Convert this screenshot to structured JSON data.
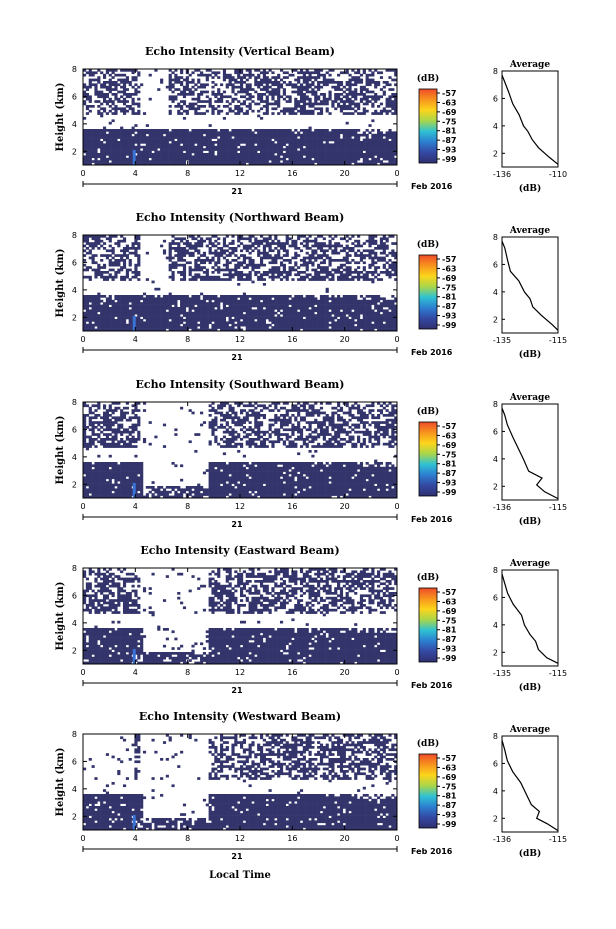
{
  "figure": {
    "x_axis_label": "Local Time",
    "date_label": "Feb 2016",
    "day_label": "21",
    "avg_title": "Average",
    "avg_xlabel": "(dB)",
    "colorbar_unit": "(dB)",
    "colorbar_ticks": [
      "-57",
      "-63",
      "-69",
      "-75",
      "-81",
      "-87",
      "-93",
      "-99"
    ],
    "colorbar_colors": [
      "#ef4b2a",
      "#f7941d",
      "#fcd51c",
      "#a9d64a",
      "#2fc2d3",
      "#2c7fd1",
      "#3448a3",
      "#2f2f6f"
    ],
    "data_color": "#33346b",
    "beam_highlight_color": "#3a73d6"
  },
  "chart_data": [
    {
      "type": "heatmap",
      "title": "Echo Intensity (Vertical Beam)",
      "ylabel": "Height (km)",
      "x_ticks": [
        "0",
        "4",
        "8",
        "12",
        "16",
        "20",
        "0"
      ],
      "y_ticks": [
        "2",
        "4",
        "6",
        "8"
      ],
      "xlim": [
        0,
        24
      ],
      "ylim": [
        1,
        8
      ],
      "avg": {
        "x_ticks": [
          "-136",
          "-110"
        ],
        "xlim": [
          -136,
          -110
        ],
        "y_ticks": [
          "2",
          "4",
          "6",
          "8"
        ],
        "profile": [
          [
            -110,
            1.2
          ],
          [
            -114,
            1.7
          ],
          [
            -119,
            2.4
          ],
          [
            -122,
            3.0
          ],
          [
            -124,
            3.6
          ],
          [
            -126,
            4.0
          ],
          [
            -128,
            4.8
          ],
          [
            -131,
            5.6
          ],
          [
            -133,
            6.5
          ],
          [
            -135,
            7.3
          ],
          [
            -136,
            7.7
          ]
        ]
      }
    },
    {
      "type": "heatmap",
      "title": "Echo Intensity (Northward Beam)",
      "ylabel": "Height (km)",
      "x_ticks": [
        "0",
        "4",
        "8",
        "12",
        "16",
        "20",
        "0"
      ],
      "y_ticks": [
        "2",
        "4",
        "6",
        "8"
      ],
      "xlim": [
        0,
        24
      ],
      "ylim": [
        1,
        8
      ],
      "avg": {
        "x_ticks": [
          "-135",
          "-115"
        ],
        "xlim": [
          -135,
          -115
        ],
        "y_ticks": [
          "2",
          "4",
          "6",
          "8"
        ],
        "profile": [
          [
            -115,
            1.2
          ],
          [
            -117,
            1.6
          ],
          [
            -121,
            2.3
          ],
          [
            -124,
            2.9
          ],
          [
            -125,
            3.5
          ],
          [
            -127,
            4.0
          ],
          [
            -129,
            4.8
          ],
          [
            -132,
            5.5
          ],
          [
            -133,
            6.3
          ],
          [
            -134,
            7.2
          ],
          [
            -135,
            7.7
          ]
        ]
      }
    },
    {
      "type": "heatmap",
      "title": "Echo Intensity (Southward Beam)",
      "ylabel": "Height (km)",
      "x_ticks": [
        "0",
        "4",
        "8",
        "12",
        "16",
        "20",
        "0"
      ],
      "y_ticks": [
        "2",
        "4",
        "6",
        "8"
      ],
      "xlim": [
        0,
        24
      ],
      "ylim": [
        1,
        8
      ],
      "avg": {
        "x_ticks": [
          "-136",
          "-115"
        ],
        "xlim": [
          -136,
          -115
        ],
        "y_ticks": [
          "2",
          "4",
          "6",
          "8"
        ],
        "profile": [
          [
            -115,
            1.1
          ],
          [
            -120,
            1.6
          ],
          [
            -123,
            2.1
          ],
          [
            -121,
            2.6
          ],
          [
            -126,
            3.1
          ],
          [
            -128,
            4.0
          ],
          [
            -130,
            4.8
          ],
          [
            -132,
            5.6
          ],
          [
            -134,
            6.5
          ],
          [
            -135,
            7.2
          ],
          [
            -136,
            7.7
          ]
        ]
      }
    },
    {
      "type": "heatmap",
      "title": "Echo Intensity (Eastward Beam)",
      "ylabel": "Height (km)",
      "x_ticks": [
        "0",
        "4",
        "8",
        "12",
        "16",
        "20",
        "0"
      ],
      "y_ticks": [
        "2",
        "4",
        "6",
        "8"
      ],
      "xlim": [
        0,
        24
      ],
      "ylim": [
        1,
        8
      ],
      "avg": {
        "x_ticks": [
          "-135",
          "-115"
        ],
        "xlim": [
          -135,
          -115
        ],
        "y_ticks": [
          "2",
          "4",
          "6",
          "8"
        ],
        "profile": [
          [
            -115,
            1.2
          ],
          [
            -119,
            1.6
          ],
          [
            -122,
            2.2
          ],
          [
            -123,
            2.8
          ],
          [
            -125,
            3.3
          ],
          [
            -127,
            4.0
          ],
          [
            -128,
            4.7
          ],
          [
            -131,
            5.5
          ],
          [
            -133,
            6.3
          ],
          [
            -134,
            7.0
          ],
          [
            -135,
            7.7
          ]
        ]
      }
    },
    {
      "type": "heatmap",
      "title": "Echo Intensity (Westward Beam)",
      "ylabel": "Height (km)",
      "x_ticks": [
        "0",
        "4",
        "8",
        "12",
        "16",
        "20",
        "0"
      ],
      "y_ticks": [
        "2",
        "4",
        "6",
        "8"
      ],
      "xlim": [
        0,
        24
      ],
      "ylim": [
        1,
        8
      ],
      "avg": {
        "x_ticks": [
          "-136",
          "-115"
        ],
        "xlim": [
          -136,
          -115
        ],
        "y_ticks": [
          "2",
          "4",
          "6",
          "8"
        ],
        "profile": [
          [
            -115,
            1.1
          ],
          [
            -119,
            1.6
          ],
          [
            -123,
            2.0
          ],
          [
            -122,
            2.5
          ],
          [
            -125,
            3.0
          ],
          [
            -127,
            3.8
          ],
          [
            -129,
            4.6
          ],
          [
            -132,
            5.4
          ],
          [
            -134,
            6.2
          ],
          [
            -135,
            7.0
          ],
          [
            -136,
            7.7
          ]
        ]
      }
    }
  ]
}
